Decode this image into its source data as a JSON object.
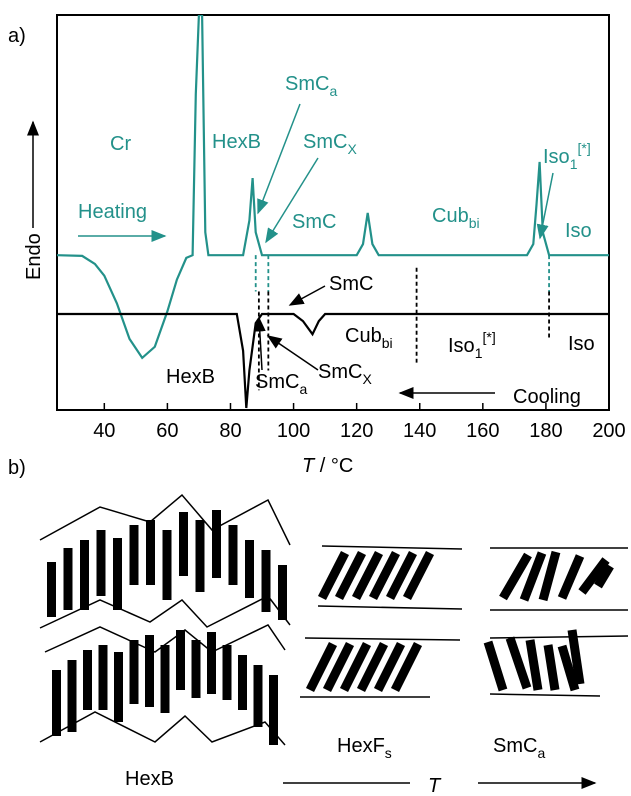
{
  "panel_label_a": "a)",
  "panel_label_b": "b)",
  "chart_data": {
    "type": "line",
    "x_label": {
      "symbol": "T",
      "unit": " / °C"
    },
    "y_label": "Endo",
    "xlim": [
      25,
      200
    ],
    "xticks": [
      40,
      60,
      80,
      100,
      120,
      140,
      160,
      180,
      200
    ],
    "ylim": [
      0,
      100
    ],
    "series": [
      {
        "name": "Heating",
        "color": "#23918a",
        "x": [
          25,
          33,
          37,
          40,
          44,
          48,
          52,
          56,
          60,
          63,
          66,
          68,
          69,
          70,
          71,
          72,
          73,
          84,
          86,
          87,
          88,
          90,
          120,
          122,
          123.5,
          125,
          127,
          174,
          176,
          177,
          178,
          179,
          181,
          200
        ],
        "values": [
          39.2,
          39,
          37,
          34,
          27,
          18,
          13.2,
          16,
          25,
          33,
          38.5,
          39.2,
          80,
          100,
          100,
          45,
          39.2,
          39.2,
          48,
          58.7,
          45,
          39.2,
          39.2,
          42,
          49.9,
          42,
          39.2,
          39.2,
          42,
          52,
          62.8,
          45,
          39.2,
          39.2
        ]
      },
      {
        "name": "Cooling",
        "color": "#000000",
        "x": [
          25,
          82,
          84,
          85,
          86,
          88,
          90,
          100,
          103,
          106,
          108,
          110,
          200
        ],
        "values": [
          24.3,
          24.3,
          15,
          0.5,
          10,
          22,
          24.3,
          24.3,
          22.5,
          19.2,
          22.5,
          24.3,
          24.3
        ]
      }
    ],
    "reference_lines": [
      {
        "x": 88,
        "y0": 39.2,
        "y1": 30,
        "color": "#23918a"
      },
      {
        "x": 89,
        "y0": 30,
        "y1": 5,
        "color": "#000000"
      },
      {
        "x": 92,
        "y0": 39.2,
        "y1": 30,
        "color": "#23918a"
      },
      {
        "x": 92,
        "y0": 30,
        "y1": 10,
        "color": "#000000"
      },
      {
        "x": 139,
        "y0": 36,
        "y1": 12,
        "color": "#000000"
      },
      {
        "x": 181,
        "y0": 39.2,
        "y1": 30,
        "color": "#23918a"
      },
      {
        "x": 181,
        "y0": 30,
        "y1": 18,
        "color": "#000000"
      }
    ],
    "annotations": [
      {
        "text": "Cr",
        "color": "#23918a"
      },
      {
        "text": "HexB",
        "color": "#23918a"
      },
      {
        "text": "SmC",
        "sub": "a",
        "color": "#23918a"
      },
      {
        "text": "SmC",
        "sub": "X",
        "color": "#23918a"
      },
      {
        "text": "SmC",
        "color": "#23918a"
      },
      {
        "text": "Cub",
        "sub": "bi",
        "color": "#23918a"
      },
      {
        "text": "Iso",
        "sub": "1",
        "sup": "[*]",
        "color": "#23918a"
      },
      {
        "text": "Iso",
        "color": "#23918a"
      },
      {
        "text": "SmC",
        "color": "#000000"
      },
      {
        "text": "Cub",
        "sub": "bi",
        "color": "#000000"
      },
      {
        "text": "Iso",
        "sub": "1",
        "sup": "[*]",
        "color": "#000000"
      },
      {
        "text": "Iso",
        "color": "#000000"
      },
      {
        "text": "HexB",
        "color": "#000000"
      },
      {
        "text": "SmC",
        "sub": "a",
        "color": "#000000"
      },
      {
        "text": "SmC",
        "sub": "X",
        "color": "#000000"
      }
    ]
  },
  "schematic": {
    "labels": [
      {
        "text": "HexB"
      },
      {
        "text": "HexF",
        "sub": "s"
      },
      {
        "text": "SmC",
        "sub": "a"
      }
    ],
    "axis_label": "T"
  }
}
